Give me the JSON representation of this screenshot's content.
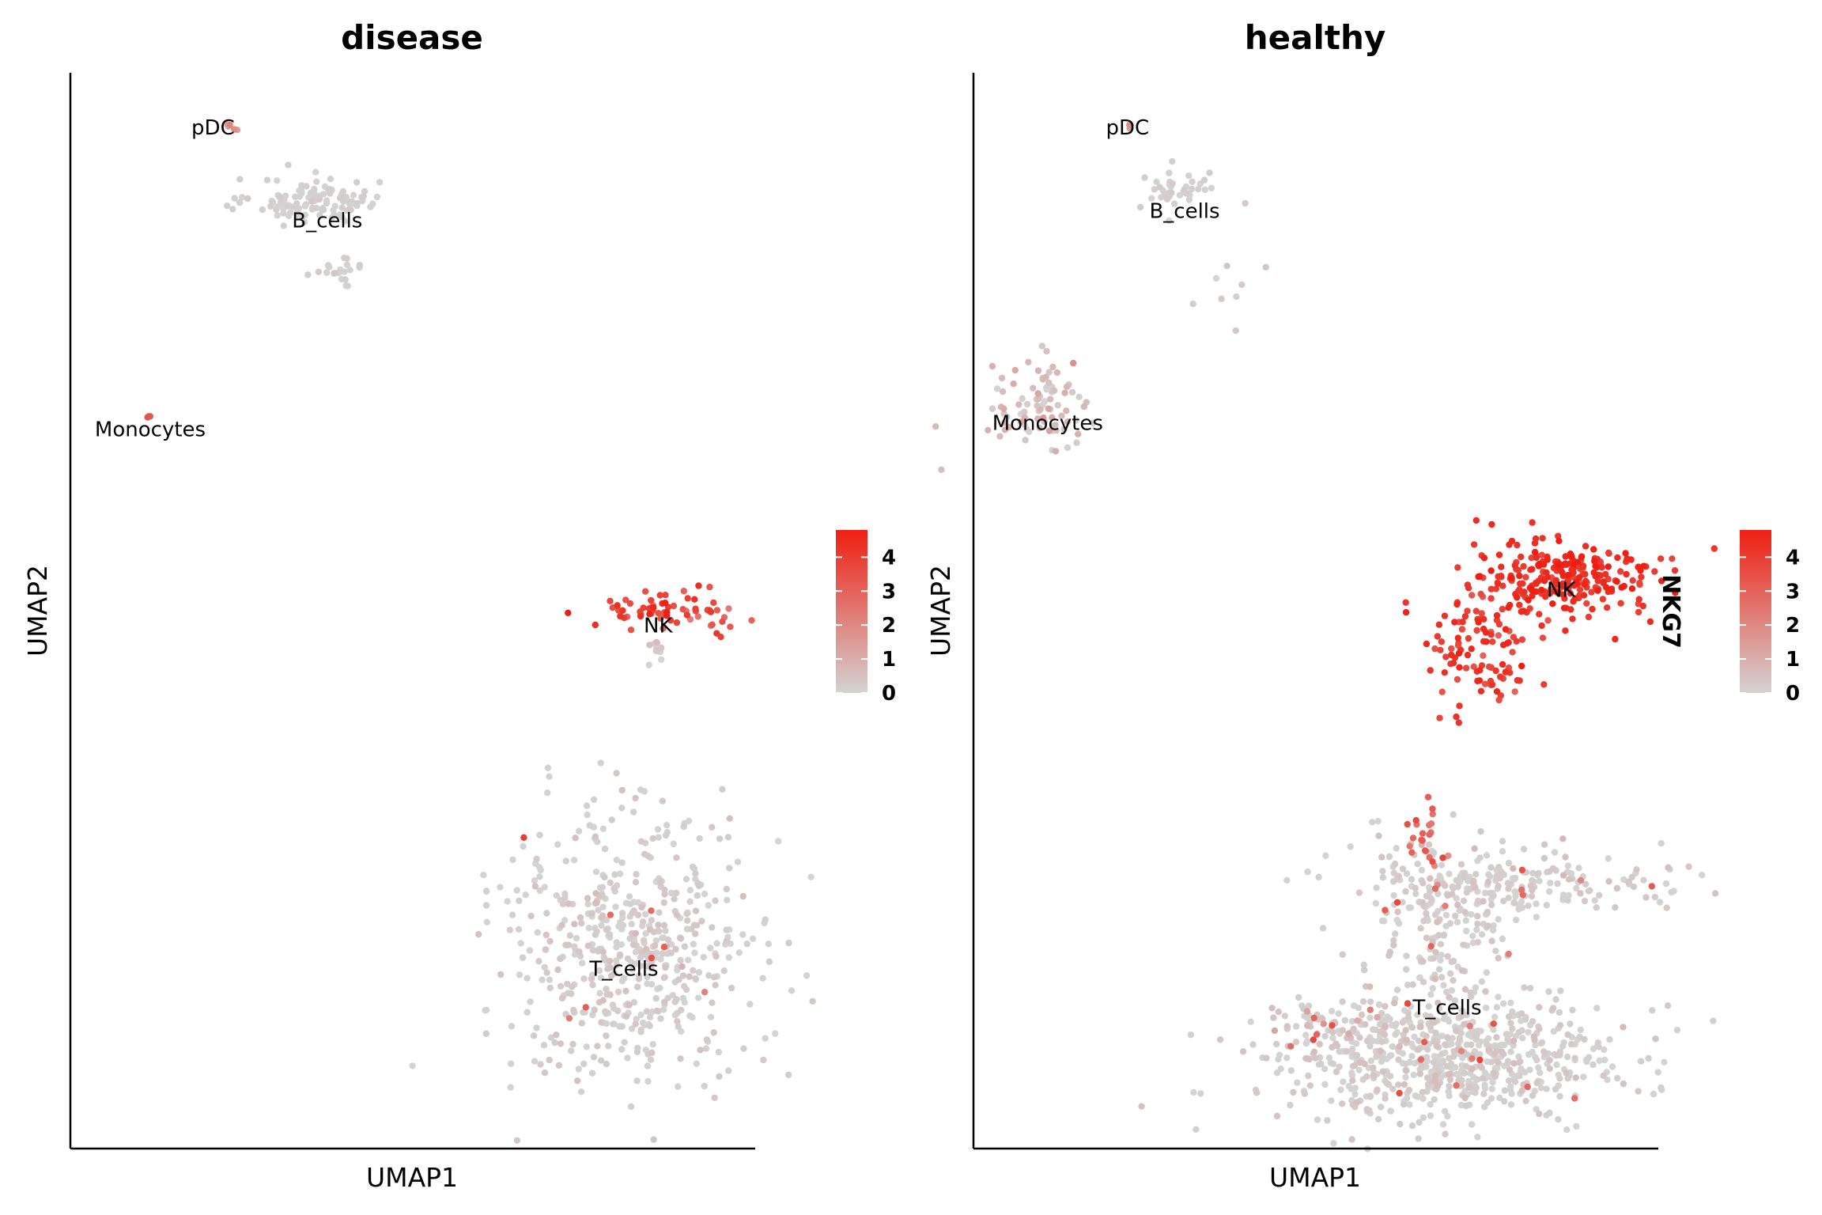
{
  "chart_data": [
    {
      "type": "scatter",
      "title": "disease",
      "xlabel": "UMAP1",
      "ylabel": "UMAP2",
      "color_scale": {
        "low": "#d3d3d3",
        "high": "#ee1f12",
        "min": 0,
        "max": 4.8,
        "ticks": [
          "0",
          "1",
          "2",
          "3",
          "4"
        ],
        "title": ""
      },
      "clusters": [
        {
          "label": "pDC",
          "label_pos": [
            2.5,
            15.3
          ],
          "center": [
            2.85,
            15.3
          ],
          "sx": 0.08,
          "sy": 0.08,
          "n": 6,
          "expr": [
            1.6,
            0.3
          ]
        },
        {
          "label": "B_cells",
          "label_pos": [
            4.5,
            12.4
          ],
          "center": [
            4.3,
            13.0
          ],
          "sx": 0.55,
          "sy": 0.35,
          "n": 120,
          "expr": [
            0.05,
            0.1
          ]
        },
        {
          "label": "",
          "label_pos": null,
          "center": [
            4.8,
            10.8
          ],
          "sx": 0.3,
          "sy": 0.3,
          "n": 20,
          "expr": [
            0.05,
            0.1
          ]
        },
        {
          "label": "Monocytes",
          "label_pos": [
            1.4,
            5.9
          ],
          "center": [
            1.45,
            6.3
          ],
          "sx": 0.05,
          "sy": 0.05,
          "n": 3,
          "expr": [
            3.2,
            0.4
          ]
        },
        {
          "label": "NK",
          "label_pos": [
            10.3,
            -0.2
          ],
          "center": [
            10.4,
            0.3
          ],
          "sx": 0.7,
          "sy": 0.35,
          "n": 70,
          "expr": [
            3.8,
            0.6
          ]
        },
        {
          "label": "",
          "label_pos": null,
          "center": [
            10.3,
            -1.1
          ],
          "sx": 0.1,
          "sy": 0.3,
          "n": 10,
          "expr": [
            0.2,
            0.3
          ]
        },
        {
          "label": "T_cells",
          "label_pos": [
            9.7,
            -10.9
          ],
          "center": [
            9.8,
            -10.3
          ],
          "sx": 1.1,
          "sy": 2.2,
          "n": 550,
          "expr": [
            0.1,
            0.2
          ],
          "hot_frac": 0.01
        }
      ],
      "xlim": [
        0,
        12
      ],
      "ylim": [
        -16.5,
        17
      ]
    },
    {
      "type": "scatter",
      "title": "healthy",
      "xlabel": "UMAP1",
      "ylabel": "UMAP2",
      "color_scale": {
        "low": "#d3d3d3",
        "high": "#ee1f12",
        "min": 0,
        "max": 4.8,
        "ticks": [
          "0",
          "1",
          "2",
          "3",
          "4"
        ],
        "title": "NKG7"
      },
      "clusters": [
        {
          "label": "pDC",
          "label_pos": [
            2.7,
            15.3
          ],
          "center": [
            2.7,
            15.3
          ],
          "sx": 0.05,
          "sy": 0.05,
          "n": 3,
          "expr": [
            1.5,
            0.3
          ]
        },
        {
          "label": "B_cells",
          "label_pos": [
            3.7,
            12.7
          ],
          "center": [
            3.6,
            13.3
          ],
          "sx": 0.35,
          "sy": 0.3,
          "n": 40,
          "expr": [
            0.05,
            0.1
          ]
        },
        {
          "label": "",
          "label_pos": null,
          "center": [
            4.4,
            10.5
          ],
          "sx": 0.35,
          "sy": 0.5,
          "n": 8,
          "expr": [
            0.3,
            0.3
          ]
        },
        {
          "label": "Monocytes",
          "label_pos": [
            1.3,
            6.1
          ],
          "center": [
            1.2,
            6.6
          ],
          "sx": 0.45,
          "sy": 0.7,
          "n": 90,
          "expr": [
            0.6,
            0.4
          ]
        },
        {
          "label": "NK",
          "label_pos": [
            10.3,
            0.9
          ],
          "center": [
            10.3,
            1.2
          ],
          "sx": 0.85,
          "sy": 0.7,
          "n": 260,
          "expr": [
            4.3,
            0.4
          ]
        },
        {
          "label": "",
          "label_pos": null,
          "center": [
            8.8,
            -1.0
          ],
          "sx": 0.45,
          "sy": 0.9,
          "n": 100,
          "expr": [
            4.0,
            0.5
          ]
        },
        {
          "label": "",
          "label_pos": null,
          "center": [
            7.9,
            -6.7
          ],
          "sx": 0.15,
          "sy": 0.7,
          "n": 25,
          "expr": [
            2.8,
            0.6
          ]
        },
        {
          "label": "",
          "label_pos": null,
          "center": [
            9.2,
            -8.3
          ],
          "sx": 1.6,
          "sy": 0.6,
          "n": 220,
          "expr": [
            0.1,
            0.2
          ],
          "hot_frac": 0.04
        },
        {
          "label": "",
          "label_pos": null,
          "center": [
            8.3,
            -10.5
          ],
          "sx": 0.7,
          "sy": 1.6,
          "n": 180,
          "expr": [
            0.1,
            0.2
          ],
          "hot_frac": 0.03
        },
        {
          "label": "",
          "label_pos": null,
          "center": [
            6.3,
            -12.6
          ],
          "sx": 0.45,
          "sy": 0.3,
          "n": 40,
          "expr": [
            0.4,
            0.5
          ],
          "hot_frac": 0.1
        },
        {
          "label": "T_cells",
          "label_pos": [
            8.3,
            -12.1
          ],
          "center": [
            8.3,
            -13.7
          ],
          "sx": 1.6,
          "sy": 0.9,
          "n": 650,
          "expr": [
            0.1,
            0.2
          ],
          "hot_frac": 0.02
        }
      ],
      "xlim": [
        0,
        12
      ],
      "ylim": [
        -16.5,
        17
      ]
    }
  ]
}
